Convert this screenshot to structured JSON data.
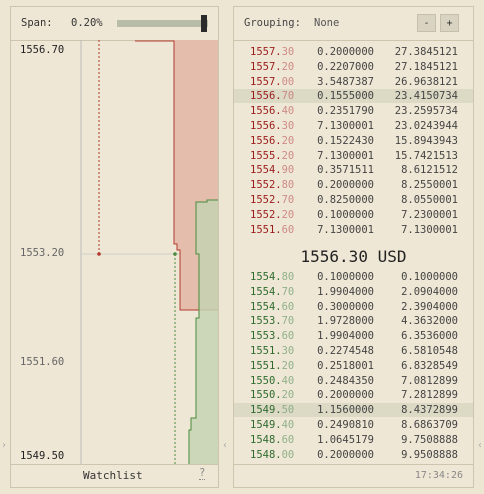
{
  "span": {
    "label": "Span:",
    "value": "0.20%",
    "level": 0.95
  },
  "chart": {
    "y_labels": [
      "1556.70",
      "1553.20",
      "1551.60",
      "1549.50"
    ],
    "colors": {
      "ask_fill": "#e4bdad",
      "ask_line": "#b23a2e",
      "bid_fill": "#c6d2b3",
      "bid_line": "#4a8a3c"
    }
  },
  "watchlist": {
    "label": "Watchlist",
    "help": "?"
  },
  "grouping": {
    "label": "Grouping:",
    "value": "None",
    "minus": "-",
    "plus": "+"
  },
  "book": {
    "asks": [
      {
        "p_main": "1557.",
        "p_dim": "30",
        "amount": "0.2000000",
        "total": "27.3845121"
      },
      {
        "p_main": "1557.",
        "p_dim": "20",
        "amount": "0.2207000",
        "total": "27.1845121"
      },
      {
        "p_main": "1557.",
        "p_dim": "00",
        "amount": "3.5487387",
        "total": "26.9638121"
      },
      {
        "p_main": "1556.",
        "p_dim": "70",
        "amount": "0.1555000",
        "total": "23.4150734",
        "hl": true
      },
      {
        "p_main": "1556.",
        "p_dim": "40",
        "amount": "0.2351790",
        "total": "23.2595734"
      },
      {
        "p_main": "1556.",
        "p_dim": "30",
        "amount": "7.1300001",
        "total": "23.0243944"
      },
      {
        "p_main": "1556.",
        "p_dim": "20",
        "amount": "0.1522430",
        "total": "15.8943943"
      },
      {
        "p_main": "1555.",
        "p_dim": "20",
        "amount": "7.1300001",
        "total": "15.7421513"
      },
      {
        "p_main": "1554.",
        "p_dim": "90",
        "amount": "0.3571511",
        "total": "8.6121512"
      },
      {
        "p_main": "1552.",
        "p_dim": "80",
        "amount": "0.2000000",
        "total": "8.2550001"
      },
      {
        "p_main": "1552.",
        "p_dim": "70",
        "amount": "0.8250000",
        "total": "8.0550001"
      },
      {
        "p_main": "1552.",
        "p_dim": "20",
        "amount": "0.1000000",
        "total": "7.2300001"
      },
      {
        "p_main": "1551.",
        "p_dim": "60",
        "amount": "7.1300001",
        "total": "7.1300001"
      }
    ],
    "mid": "1556.30 USD",
    "bids": [
      {
        "p_main": "1554.",
        "p_dim": "80",
        "amount": "0.1000000",
        "total": "0.1000000"
      },
      {
        "p_main": "1554.",
        "p_dim": "70",
        "amount": "1.9904000",
        "total": "2.0904000"
      },
      {
        "p_main": "1554.",
        "p_dim": "60",
        "amount": "0.3000000",
        "total": "2.3904000"
      },
      {
        "p_main": "1553.",
        "p_dim": "70",
        "amount": "1.9728000",
        "total": "4.3632000"
      },
      {
        "p_main": "1553.",
        "p_dim": "60",
        "amount": "1.9904000",
        "total": "6.3536000"
      },
      {
        "p_main": "1551.",
        "p_dim": "30",
        "amount": "0.2274548",
        "total": "6.5810548"
      },
      {
        "p_main": "1551.",
        "p_dim": "20",
        "amount": "0.2518001",
        "total": "6.8328549"
      },
      {
        "p_main": "1550.",
        "p_dim": "40",
        "amount": "0.2484350",
        "total": "7.0812899"
      },
      {
        "p_main": "1550.",
        "p_dim": "20",
        "amount": "0.2000000",
        "total": "7.2812899"
      },
      {
        "p_main": "1549.",
        "p_dim": "50",
        "amount": "1.1560000",
        "total": "8.4372899",
        "hl": true
      },
      {
        "p_main": "1549.",
        "p_dim": "40",
        "amount": "0.2490810",
        "total": "8.6863709"
      },
      {
        "p_main": "1548.",
        "p_dim": "60",
        "amount": "1.0645179",
        "total": "9.7508888"
      },
      {
        "p_main": "1548.",
        "p_dim": "00",
        "amount": "0.2000000",
        "total": "9.9508888"
      }
    ]
  },
  "clock": "17:34:26"
}
